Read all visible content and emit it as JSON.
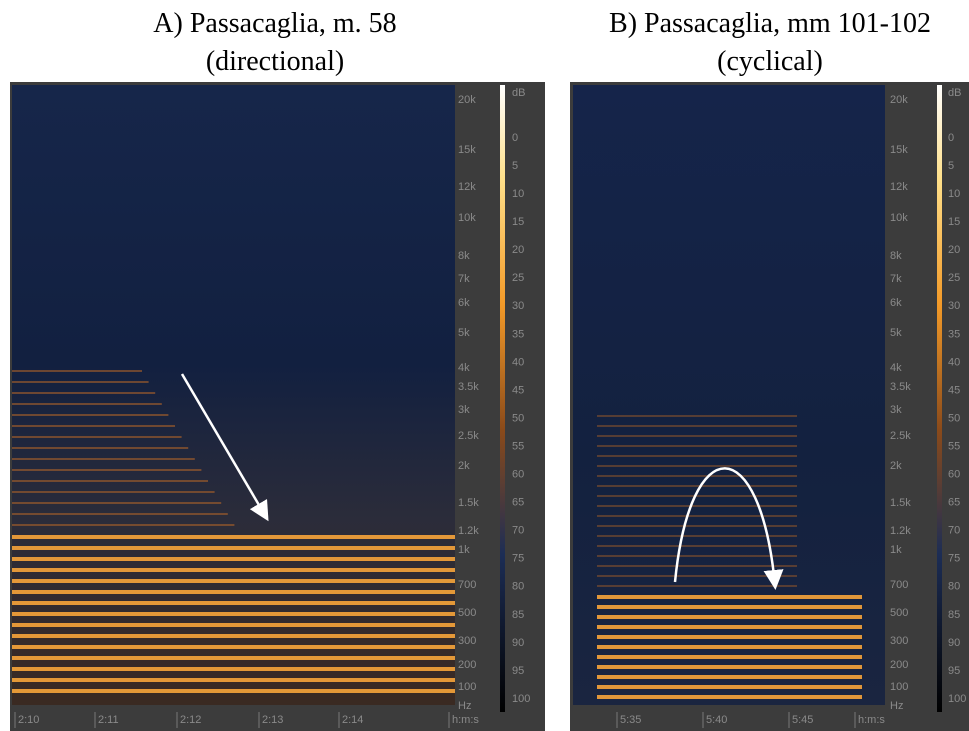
{
  "panels": [
    {
      "title": [
        "A) Passacaglia, m. 58",
        "(directional)"
      ],
      "freq_labels": [
        "20k",
        "15k",
        "12k",
        "10k",
        "8k",
        "7k",
        "6k",
        "5k",
        "4k",
        "3.5k",
        "3k",
        "2.5k",
        "2k",
        "1.5k",
        "1.2k",
        "1k",
        "700",
        "500",
        "300",
        "200",
        "100",
        "Hz"
      ],
      "db_labels": [
        "dB",
        "0",
        "5",
        "10",
        "15",
        "20",
        "25",
        "30",
        "35",
        "40",
        "45",
        "50",
        "55",
        "60",
        "65",
        "70",
        "75",
        "80",
        "85",
        "90",
        "95",
        "100"
      ],
      "time_labels": [
        "2:10",
        "2:11",
        "2:12",
        "2:13",
        "2:14",
        "h:m:s"
      ]
    },
    {
      "title": [
        "B) Passacaglia, mm 101-102",
        "(cyclical)"
      ],
      "freq_labels": [
        "20k",
        "15k",
        "12k",
        "10k",
        "8k",
        "7k",
        "6k",
        "5k",
        "4k",
        "3.5k",
        "3k",
        "2.5k",
        "2k",
        "1.5k",
        "1.2k",
        "1k",
        "700",
        "500",
        "300",
        "200",
        "100",
        "Hz"
      ],
      "db_labels": [
        "dB",
        "0",
        "5",
        "10",
        "15",
        "20",
        "25",
        "30",
        "35",
        "40",
        "45",
        "50",
        "55",
        "60",
        "65",
        "70",
        "75",
        "80",
        "85",
        "90",
        "95",
        "100"
      ],
      "time_labels": [
        "5:35",
        "5:40",
        "5:45",
        "h:m:s"
      ]
    }
  ]
}
